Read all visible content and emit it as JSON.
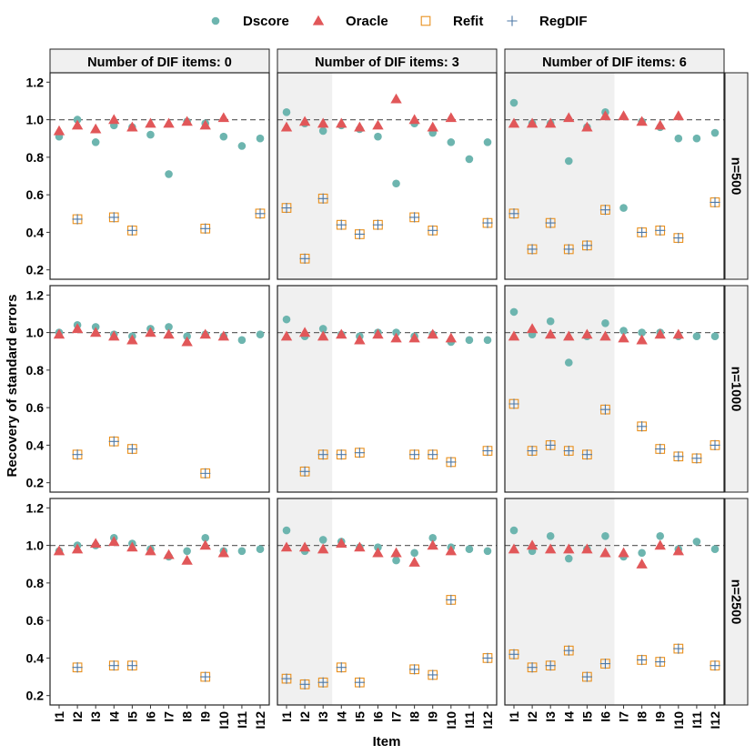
{
  "chart_data": {
    "type": "scatter",
    "title": "",
    "xlabel": "Item",
    "ylabel": "Recovery of standard errors",
    "categories": [
      "I1",
      "I2",
      "I3",
      "I4",
      "I5",
      "I6",
      "I7",
      "I8",
      "I9",
      "I10",
      "I11",
      "I12"
    ],
    "ylim": [
      0.15,
      1.25
    ],
    "y_ticks": [
      0.2,
      0.4,
      0.6,
      0.8,
      1.0,
      1.2
    ],
    "y_tick_labels": [
      "0.2",
      "0.4",
      "0.6",
      "0.8",
      "1.0",
      "1.2"
    ],
    "reference_line": 1.0,
    "legend": [
      {
        "name": "Dscore",
        "marker": "circle",
        "color": "#6DB5AF"
      },
      {
        "name": "Oracle",
        "marker": "triangle",
        "color": "#E15759"
      },
      {
        "name": "Refit",
        "marker": "square-open",
        "color": "#E8901E"
      },
      {
        "name": "RegDIF",
        "marker": "plus",
        "color": "#4E79A7"
      }
    ],
    "columns": [
      {
        "label": "Number of DIF items: 0",
        "dif_items": 0
      },
      {
        "label": "Number of DIF items: 3",
        "dif_items": 3
      },
      {
        "label": "Number of DIF items: 6",
        "dif_items": 6
      }
    ],
    "rows": [
      {
        "label": "n=500"
      },
      {
        "label": "n=1000"
      },
      {
        "label": "n=2500"
      }
    ],
    "panels": [
      [
        {
          "Dscore": [
            0.91,
            1.0,
            0.88,
            0.97,
            0.96,
            0.92,
            0.71,
            0.99,
            0.98,
            0.91,
            0.86,
            0.9
          ],
          "Oracle": [
            0.94,
            0.97,
            0.95,
            1.0,
            0.96,
            0.98,
            0.98,
            0.99,
            0.97,
            1.01,
            null,
            null
          ],
          "Refit": [
            null,
            0.47,
            null,
            0.48,
            0.41,
            null,
            null,
            null,
            0.42,
            null,
            null,
            0.5
          ],
          "RegDIF": [
            null,
            0.47,
            null,
            0.48,
            0.41,
            null,
            null,
            null,
            0.42,
            null,
            null,
            0.5
          ]
        },
        {
          "Dscore": [
            1.04,
            0.98,
            0.94,
            0.97,
            0.95,
            0.91,
            0.66,
            0.98,
            0.93,
            0.88,
            0.79,
            0.88
          ],
          "Oracle": [
            0.96,
            0.99,
            0.98,
            0.98,
            0.96,
            0.97,
            1.11,
            1.0,
            0.96,
            1.01,
            null,
            null
          ],
          "Refit": [
            0.53,
            0.26,
            0.58,
            0.44,
            0.39,
            0.44,
            null,
            0.48,
            0.41,
            null,
            null,
            0.45
          ],
          "RegDIF": [
            0.53,
            0.26,
            0.58,
            0.44,
            0.39,
            0.44,
            null,
            0.48,
            0.41,
            null,
            null,
            0.45
          ]
        },
        {
          "Dscore": [
            1.09,
            0.98,
            0.98,
            0.78,
            0.96,
            1.04,
            0.53,
            0.99,
            0.96,
            0.9,
            0.9,
            0.93
          ],
          "Oracle": [
            0.98,
            0.98,
            0.98,
            1.01,
            0.96,
            1.02,
            1.02,
            0.99,
            0.97,
            1.02,
            null,
            null
          ],
          "Refit": [
            0.5,
            0.31,
            0.45,
            0.31,
            0.33,
            0.52,
            null,
            0.4,
            0.41,
            0.37,
            null,
            0.56
          ],
          "RegDIF": [
            0.5,
            0.31,
            0.45,
            0.31,
            0.33,
            0.52,
            null,
            0.4,
            0.41,
            0.37,
            null,
            0.56
          ]
        }
      ],
      [
        {
          "Dscore": [
            1.0,
            1.04,
            1.03,
            0.99,
            0.98,
            1.02,
            1.03,
            0.98,
            0.99,
            0.98,
            0.96,
            0.99
          ],
          "Oracle": [
            0.99,
            1.02,
            1.0,
            0.98,
            0.96,
            1.0,
            0.99,
            0.95,
            0.99,
            0.98,
            null,
            null
          ],
          "Refit": [
            null,
            0.35,
            null,
            0.42,
            0.38,
            null,
            null,
            null,
            0.25,
            null,
            null,
            null
          ],
          "RegDIF": [
            null,
            0.35,
            null,
            0.42,
            0.38,
            null,
            null,
            null,
            0.25,
            null,
            null,
            null
          ]
        },
        {
          "Dscore": [
            1.07,
            0.98,
            1.02,
            0.99,
            0.98,
            1.0,
            1.0,
            0.98,
            0.99,
            0.95,
            0.96,
            0.96
          ],
          "Oracle": [
            0.98,
            1.0,
            0.98,
            0.99,
            0.96,
            0.99,
            0.97,
            0.97,
            0.99,
            0.97,
            null,
            null
          ],
          "Refit": [
            null,
            0.26,
            0.35,
            0.35,
            0.36,
            null,
            null,
            0.35,
            0.35,
            0.31,
            null,
            0.37
          ],
          "RegDIF": [
            null,
            0.26,
            0.35,
            0.35,
            0.36,
            null,
            null,
            0.35,
            0.35,
            0.31,
            null,
            0.37
          ]
        },
        {
          "Dscore": [
            1.11,
            0.99,
            1.06,
            0.84,
            0.98,
            1.05,
            1.01,
            1.0,
            1.0,
            0.98,
            0.98,
            0.98
          ],
          "Oracle": [
            0.98,
            1.02,
            0.99,
            0.98,
            0.99,
            0.98,
            0.97,
            0.96,
            0.99,
            0.99,
            null,
            null
          ],
          "Refit": [
            0.62,
            0.37,
            0.4,
            0.37,
            0.35,
            0.59,
            null,
            0.5,
            0.38,
            0.34,
            0.33,
            0.4
          ],
          "RegDIF": [
            0.62,
            0.37,
            0.4,
            0.37,
            0.35,
            0.59,
            null,
            0.5,
            0.38,
            0.34,
            0.33,
            0.4
          ]
        }
      ],
      [
        {
          "Dscore": [
            0.97,
            1.0,
            1.0,
            1.04,
            1.01,
            0.98,
            0.94,
            0.97,
            1.04,
            0.97,
            0.97,
            0.98
          ],
          "Oracle": [
            0.97,
            0.98,
            1.01,
            1.02,
            0.99,
            0.97,
            0.95,
            0.92,
            1.0,
            0.96,
            null,
            null
          ],
          "Refit": [
            null,
            0.35,
            null,
            0.36,
            0.36,
            null,
            null,
            null,
            0.3,
            null,
            null,
            null
          ],
          "RegDIF": [
            null,
            0.35,
            null,
            0.36,
            0.36,
            null,
            null,
            null,
            0.3,
            null,
            null,
            null
          ]
        },
        {
          "Dscore": [
            1.08,
            0.97,
            1.03,
            1.02,
            0.99,
            0.99,
            0.92,
            0.96,
            1.04,
            0.99,
            0.98,
            0.97
          ],
          "Oracle": [
            0.99,
            0.99,
            0.98,
            1.01,
            0.99,
            0.96,
            0.96,
            0.91,
            1.0,
            0.97,
            null,
            null
          ],
          "Refit": [
            0.29,
            0.26,
            0.27,
            0.35,
            0.27,
            null,
            null,
            0.34,
            0.31,
            0.71,
            null,
            0.4
          ],
          "RegDIF": [
            0.29,
            0.26,
            0.27,
            0.35,
            0.27,
            null,
            null,
            0.34,
            0.31,
            0.71,
            null,
            0.4
          ]
        },
        {
          "Dscore": [
            1.08,
            0.97,
            1.05,
            0.93,
            0.98,
            1.05,
            0.94,
            0.96,
            1.05,
            0.98,
            1.02,
            0.98
          ],
          "Oracle": [
            0.98,
            1.0,
            0.98,
            0.98,
            0.98,
            0.96,
            0.96,
            0.9,
            1.0,
            0.97,
            null,
            null
          ],
          "Refit": [
            0.42,
            0.35,
            0.36,
            0.44,
            0.3,
            0.37,
            null,
            0.39,
            0.38,
            0.45,
            null,
            0.36
          ],
          "RegDIF": [
            0.42,
            0.35,
            0.36,
            0.44,
            0.3,
            0.37,
            null,
            0.39,
            0.38,
            0.45,
            null,
            0.36
          ]
        }
      ]
    ]
  }
}
